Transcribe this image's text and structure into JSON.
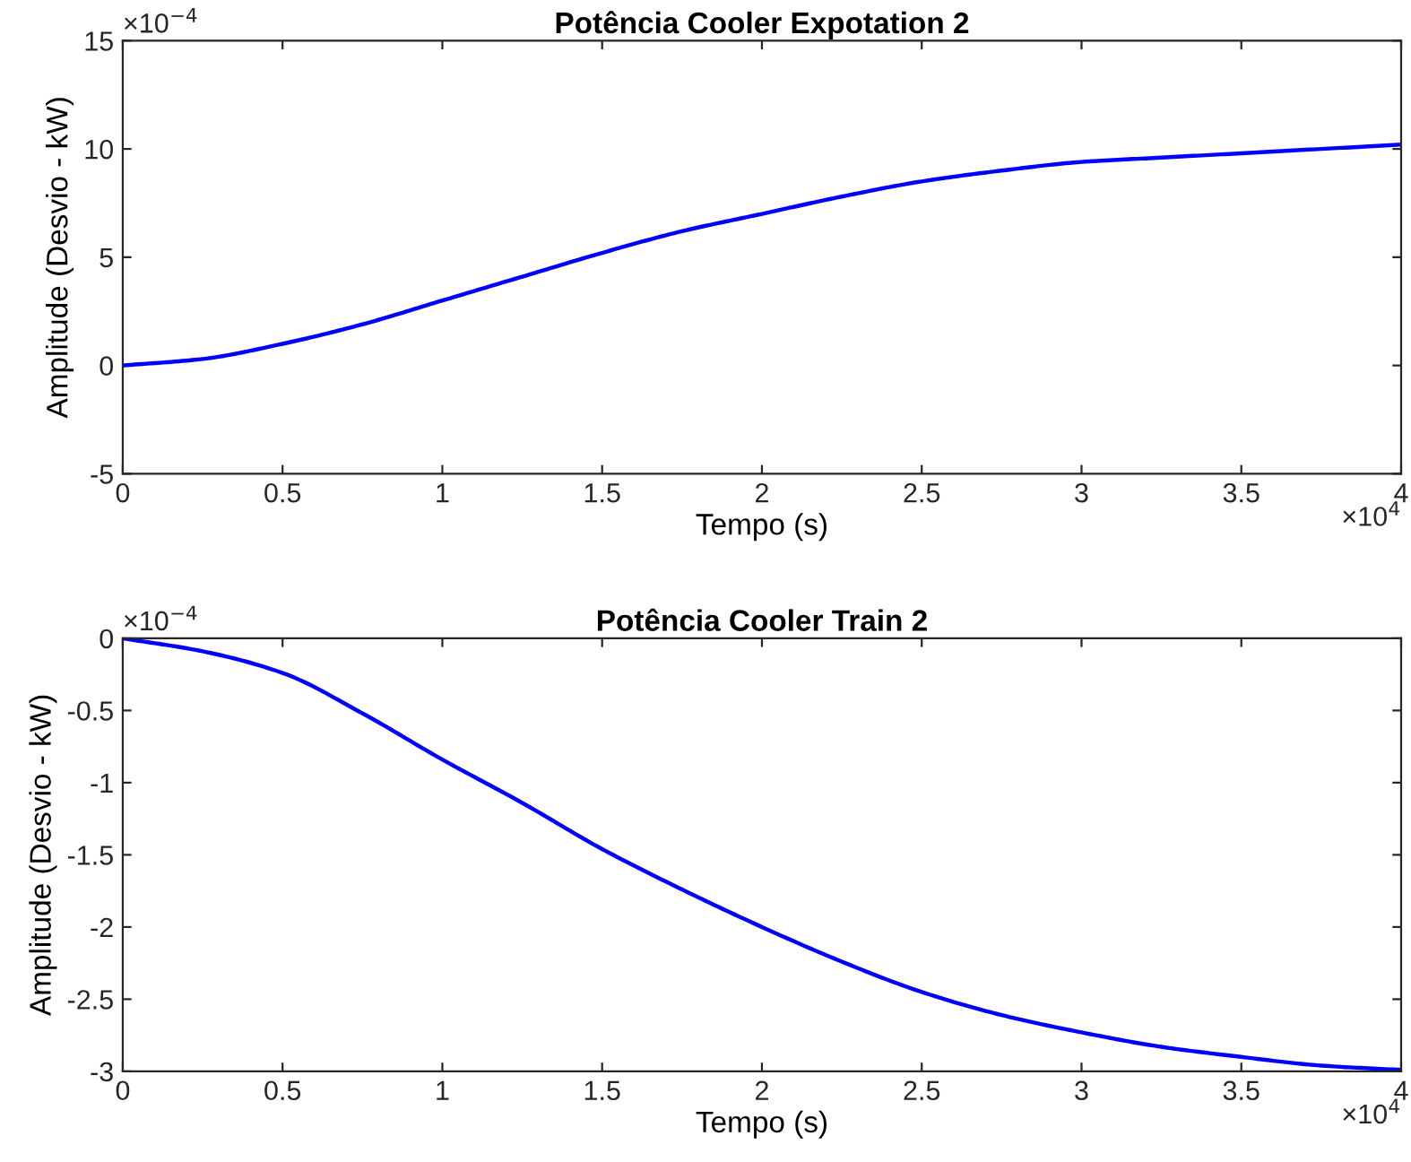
{
  "chart_data": [
    {
      "type": "line",
      "title": "Potência Cooler Expotation 2",
      "xlabel": "Tempo (s)",
      "ylabel": "Amplitude (Desvio - kW)",
      "x": [
        0,
        0.25,
        0.5,
        0.75,
        1,
        1.25,
        1.5,
        1.75,
        2,
        2.25,
        2.5,
        2.75,
        3,
        3.25,
        3.5,
        3.75,
        4
      ],
      "series": [
        {
          "color": "#0000ff",
          "values": [
            0,
            0.3,
            1.0,
            1.9,
            3.0,
            4.1,
            5.2,
            6.2,
            7.0,
            7.8,
            8.5,
            9.0,
            9.4,
            9.6,
            9.8,
            10.0,
            10.2
          ]
        }
      ],
      "xlim": [
        0,
        4
      ],
      "ylim": [
        -5,
        15
      ],
      "xticks": [
        0,
        0.5,
        1,
        1.5,
        2,
        2.5,
        3,
        3.5,
        4
      ],
      "yticks": [
        -5,
        0,
        5,
        10,
        15
      ],
      "annotations": [
        "×10$^{−4}$",
        "×10$^{4}$"
      ],
      "grid": false,
      "legend": false,
      "line_style": "solid"
    },
    {
      "type": "line",
      "title": "Potência Cooler Train 2",
      "xlabel": "Tempo (s)",
      "ylabel": "Amplitude (Desvio - kW)",
      "x": [
        0,
        0.25,
        0.5,
        0.75,
        1,
        1.25,
        1.5,
        1.75,
        2,
        2.25,
        2.5,
        2.75,
        3,
        3.25,
        3.5,
        3.75,
        4
      ],
      "series": [
        {
          "color": "#0000ff",
          "values": [
            0,
            -0.09,
            -0.24,
            -0.52,
            -0.84,
            -1.14,
            -1.46,
            -1.74,
            -2.0,
            -2.24,
            -2.45,
            -2.61,
            -2.73,
            -2.83,
            -2.9,
            -2.96,
            -2.99
          ]
        }
      ],
      "xlim": [
        0,
        4
      ],
      "ylim": [
        -3,
        0
      ],
      "xticks": [
        0,
        0.5,
        1,
        1.5,
        2,
        2.5,
        3,
        3.5,
        4
      ],
      "yticks": [
        -3,
        -2.5,
        -2,
        -1.5,
        -1,
        -0.5,
        0
      ],
      "annotations": [
        "×10$^{−4}$",
        "×10$^{4}$"
      ],
      "grid": false,
      "legend": false,
      "line_style": "solid"
    }
  ]
}
